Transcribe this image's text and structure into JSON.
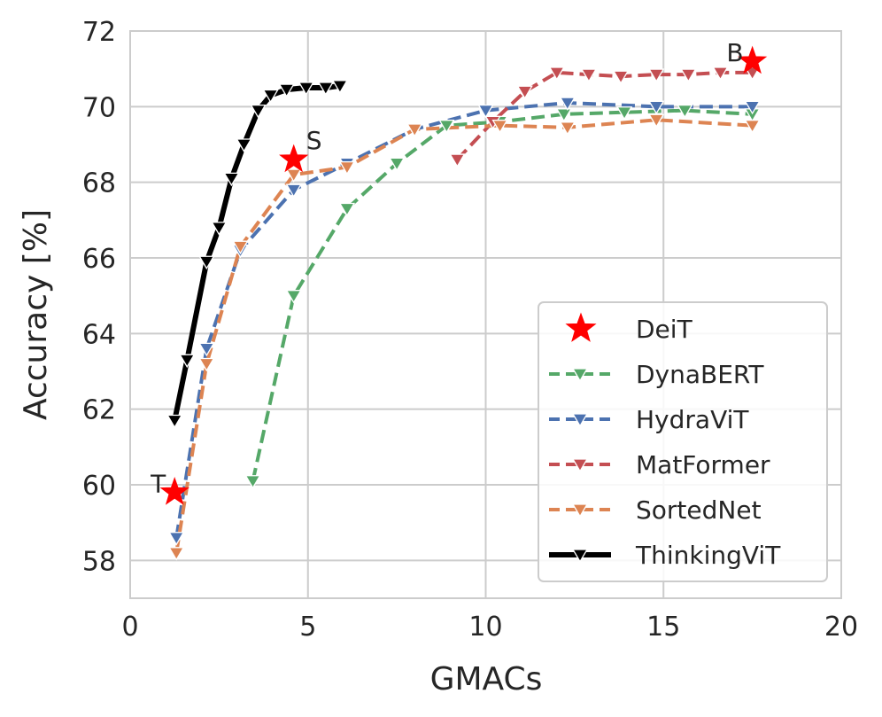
{
  "chart_data": {
    "type": "line",
    "title": "",
    "xlabel": "GMACs",
    "ylabel": "Accuracy [%]",
    "xlim": [
      0,
      20
    ],
    "ylim": [
      57,
      72
    ],
    "xticks": [
      0,
      5,
      10,
      15,
      20
    ],
    "yticks": [
      58,
      60,
      62,
      64,
      66,
      68,
      70,
      72
    ],
    "grid": true,
    "legend_position": "lower-right",
    "series": [
      {
        "name": "DynaBERT",
        "color": "#55a868",
        "style": "dashed",
        "marker": "triangle-down",
        "x": [
          3.45,
          4.6,
          6.1,
          7.5,
          8.9,
          10.4,
          12.2,
          13.9,
          15.6,
          17.5
        ],
        "y": [
          60.1,
          65.0,
          67.3,
          68.5,
          69.5,
          69.6,
          69.8,
          69.85,
          69.9,
          69.8
        ]
      },
      {
        "name": "HydraViT",
        "color": "#4c72b0",
        "style": "dashed",
        "marker": "triangle-down",
        "x": [
          1.3,
          2.15,
          3.1,
          4.6,
          6.1,
          8.0,
          10.0,
          12.3,
          14.8,
          17.5
        ],
        "y": [
          58.6,
          63.6,
          66.2,
          67.8,
          68.5,
          69.4,
          69.9,
          70.1,
          70.0,
          70.0
        ]
      },
      {
        "name": "MatFormer",
        "color": "#c44e52",
        "style": "dashed",
        "marker": "triangle-down",
        "x": [
          9.2,
          10.2,
          11.1,
          12.0,
          12.9,
          13.8,
          14.8,
          15.7,
          16.6,
          17.5
        ],
        "y": [
          68.6,
          69.6,
          70.4,
          70.9,
          70.85,
          70.8,
          70.85,
          70.85,
          70.9,
          70.9
        ]
      },
      {
        "name": "SortedNet",
        "color": "#dd8452",
        "style": "dashed",
        "marker": "triangle-down",
        "x": [
          1.3,
          2.15,
          3.1,
          4.6,
          6.1,
          8.0,
          10.4,
          12.3,
          14.8,
          17.5
        ],
        "y": [
          58.2,
          63.2,
          66.3,
          68.2,
          68.4,
          69.4,
          69.5,
          69.45,
          69.65,
          69.5
        ]
      },
      {
        "name": "ThinkingViT",
        "color": "#000000",
        "style": "solid",
        "marker": "triangle-down",
        "x": [
          1.25,
          1.6,
          2.15,
          2.5,
          2.85,
          3.2,
          3.6,
          3.95,
          4.4,
          4.95,
          5.5,
          5.9
        ],
        "y": [
          61.7,
          63.3,
          65.9,
          66.8,
          68.1,
          69.0,
          69.9,
          70.3,
          70.45,
          70.5,
          70.5,
          70.55
        ]
      }
    ],
    "reference_points": {
      "name": "DeiT",
      "color": "#ff0000",
      "marker": "star",
      "points": [
        {
          "label": "T",
          "x": 1.25,
          "y": 59.8
        },
        {
          "label": "S",
          "x": 4.6,
          "y": 68.6
        },
        {
          "label": "B",
          "x": 17.5,
          "y": 71.2
        }
      ]
    }
  }
}
